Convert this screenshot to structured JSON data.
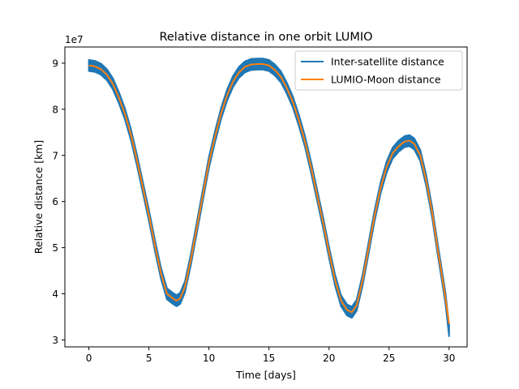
{
  "chart_data": {
    "type": "line",
    "title": "Relative distance in one orbit LUMIO",
    "xlabel": "Time [days]",
    "ylabel": "Relative distance [km]",
    "y_offset_label": "1e7",
    "xlim": [
      -2,
      31.5
    ],
    "ylim": [
      2.85,
      9.35
    ],
    "y_scale_factor": 10000000,
    "x_ticks": [
      0,
      5,
      10,
      15,
      20,
      25,
      30
    ],
    "x_tick_labels": [
      "0",
      "5",
      "10",
      "15",
      "20",
      "25",
      "30"
    ],
    "y_ticks": [
      3,
      4,
      5,
      6,
      7,
      8,
      9
    ],
    "y_tick_labels": [
      "3",
      "4",
      "5",
      "6",
      "7",
      "8",
      "9"
    ],
    "grid": false,
    "legend_position": "top-right",
    "series": [
      {
        "name": "Inter-satellite distance",
        "color": "#1f77b4",
        "band_halfwidth": 0.12,
        "x": [
          0,
          0.5,
          1,
          1.5,
          2,
          2.5,
          3,
          3.5,
          4,
          4.5,
          5,
          5.5,
          6,
          6.5,
          7,
          7.3,
          7.6,
          8,
          8.5,
          9,
          9.5,
          10,
          10.5,
          11,
          11.5,
          12,
          12.5,
          13,
          13.5,
          14,
          14.5,
          15,
          15.5,
          16,
          16.5,
          17,
          17.5,
          18,
          18.5,
          19,
          19.5,
          20,
          20.5,
          21,
          21.5,
          21.9,
          22.3,
          22.8,
          23.3,
          23.8,
          24.3,
          24.8,
          25.3,
          25.8,
          26.3,
          26.7,
          27.1,
          27.6,
          28.1,
          28.6,
          29,
          29.4,
          29.7,
          30
        ],
        "y": [
          8.95,
          8.93,
          8.87,
          8.75,
          8.55,
          8.25,
          7.9,
          7.45,
          6.9,
          6.3,
          5.7,
          5.05,
          4.45,
          4.0,
          3.9,
          3.85,
          3.9,
          4.15,
          4.75,
          5.45,
          6.15,
          6.85,
          7.4,
          7.9,
          8.3,
          8.6,
          8.8,
          8.92,
          8.97,
          8.98,
          8.98,
          8.95,
          8.85,
          8.7,
          8.45,
          8.15,
          7.75,
          7.3,
          6.75,
          6.15,
          5.55,
          4.9,
          4.3,
          3.85,
          3.65,
          3.6,
          3.75,
          4.3,
          5.0,
          5.7,
          6.3,
          6.75,
          7.05,
          7.2,
          7.3,
          7.32,
          7.25,
          7.0,
          6.45,
          5.75,
          5.05,
          4.4,
          3.9,
          3.2
        ]
      },
      {
        "name": "LUMIO-Moon distance",
        "color": "#ff7f0e",
        "x": [
          0,
          0.5,
          1,
          1.5,
          2,
          2.5,
          3,
          3.5,
          4,
          4.5,
          5,
          5.5,
          6,
          6.5,
          7,
          7.3,
          7.6,
          8,
          8.5,
          9,
          9.5,
          10,
          10.5,
          11,
          11.5,
          12,
          12.5,
          13,
          13.5,
          14,
          14.5,
          15,
          15.5,
          16,
          16.5,
          17,
          17.5,
          18,
          18.5,
          19,
          19.5,
          20,
          20.5,
          21,
          21.5,
          21.9,
          22.3,
          22.8,
          23.3,
          23.8,
          24.3,
          24.8,
          25.3,
          25.8,
          26.3,
          26.7,
          27.1,
          27.6,
          28.1,
          28.6,
          29,
          29.4,
          29.7,
          30
        ],
        "y": [
          8.95,
          8.93,
          8.87,
          8.75,
          8.55,
          8.25,
          7.9,
          7.45,
          6.9,
          6.3,
          5.7,
          5.05,
          4.45,
          4.0,
          3.9,
          3.85,
          3.9,
          4.15,
          4.75,
          5.45,
          6.15,
          6.85,
          7.4,
          7.9,
          8.3,
          8.6,
          8.8,
          8.92,
          8.97,
          8.98,
          8.98,
          8.95,
          8.85,
          8.7,
          8.45,
          8.15,
          7.75,
          7.3,
          6.75,
          6.15,
          5.55,
          4.9,
          4.3,
          3.85,
          3.65,
          3.6,
          3.75,
          4.3,
          5.0,
          5.7,
          6.3,
          6.75,
          7.05,
          7.2,
          7.3,
          7.32,
          7.25,
          7.0,
          6.45,
          5.75,
          5.05,
          4.4,
          3.9,
          3.35
        ]
      }
    ]
  }
}
